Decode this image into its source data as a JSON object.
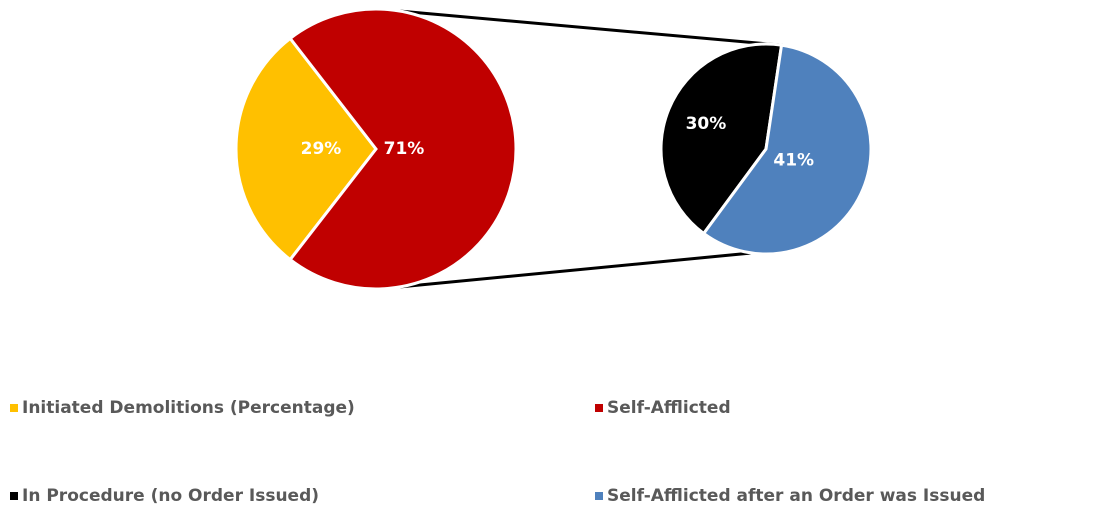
{
  "chart_data": {
    "type": "pie-of-pie",
    "pies": [
      {
        "labels": [
          "Initiated Demolitions (Percentage)",
          "Self-Afflicted"
        ],
        "values": [
          29,
          71
        ],
        "value_labels": [
          "29%",
          "71%"
        ],
        "colors": [
          "#ffc000",
          "#c00000"
        ]
      },
      {
        "labels": [
          "In Procedure (no Order Issued)",
          "Self-Afflicted after an Order was Issued"
        ],
        "values": [
          30,
          41
        ],
        "value_labels": [
          "30%",
          "41%"
        ],
        "colors": [
          "#000000",
          "#4f81bd"
        ]
      }
    ],
    "legend": "bottom"
  }
}
